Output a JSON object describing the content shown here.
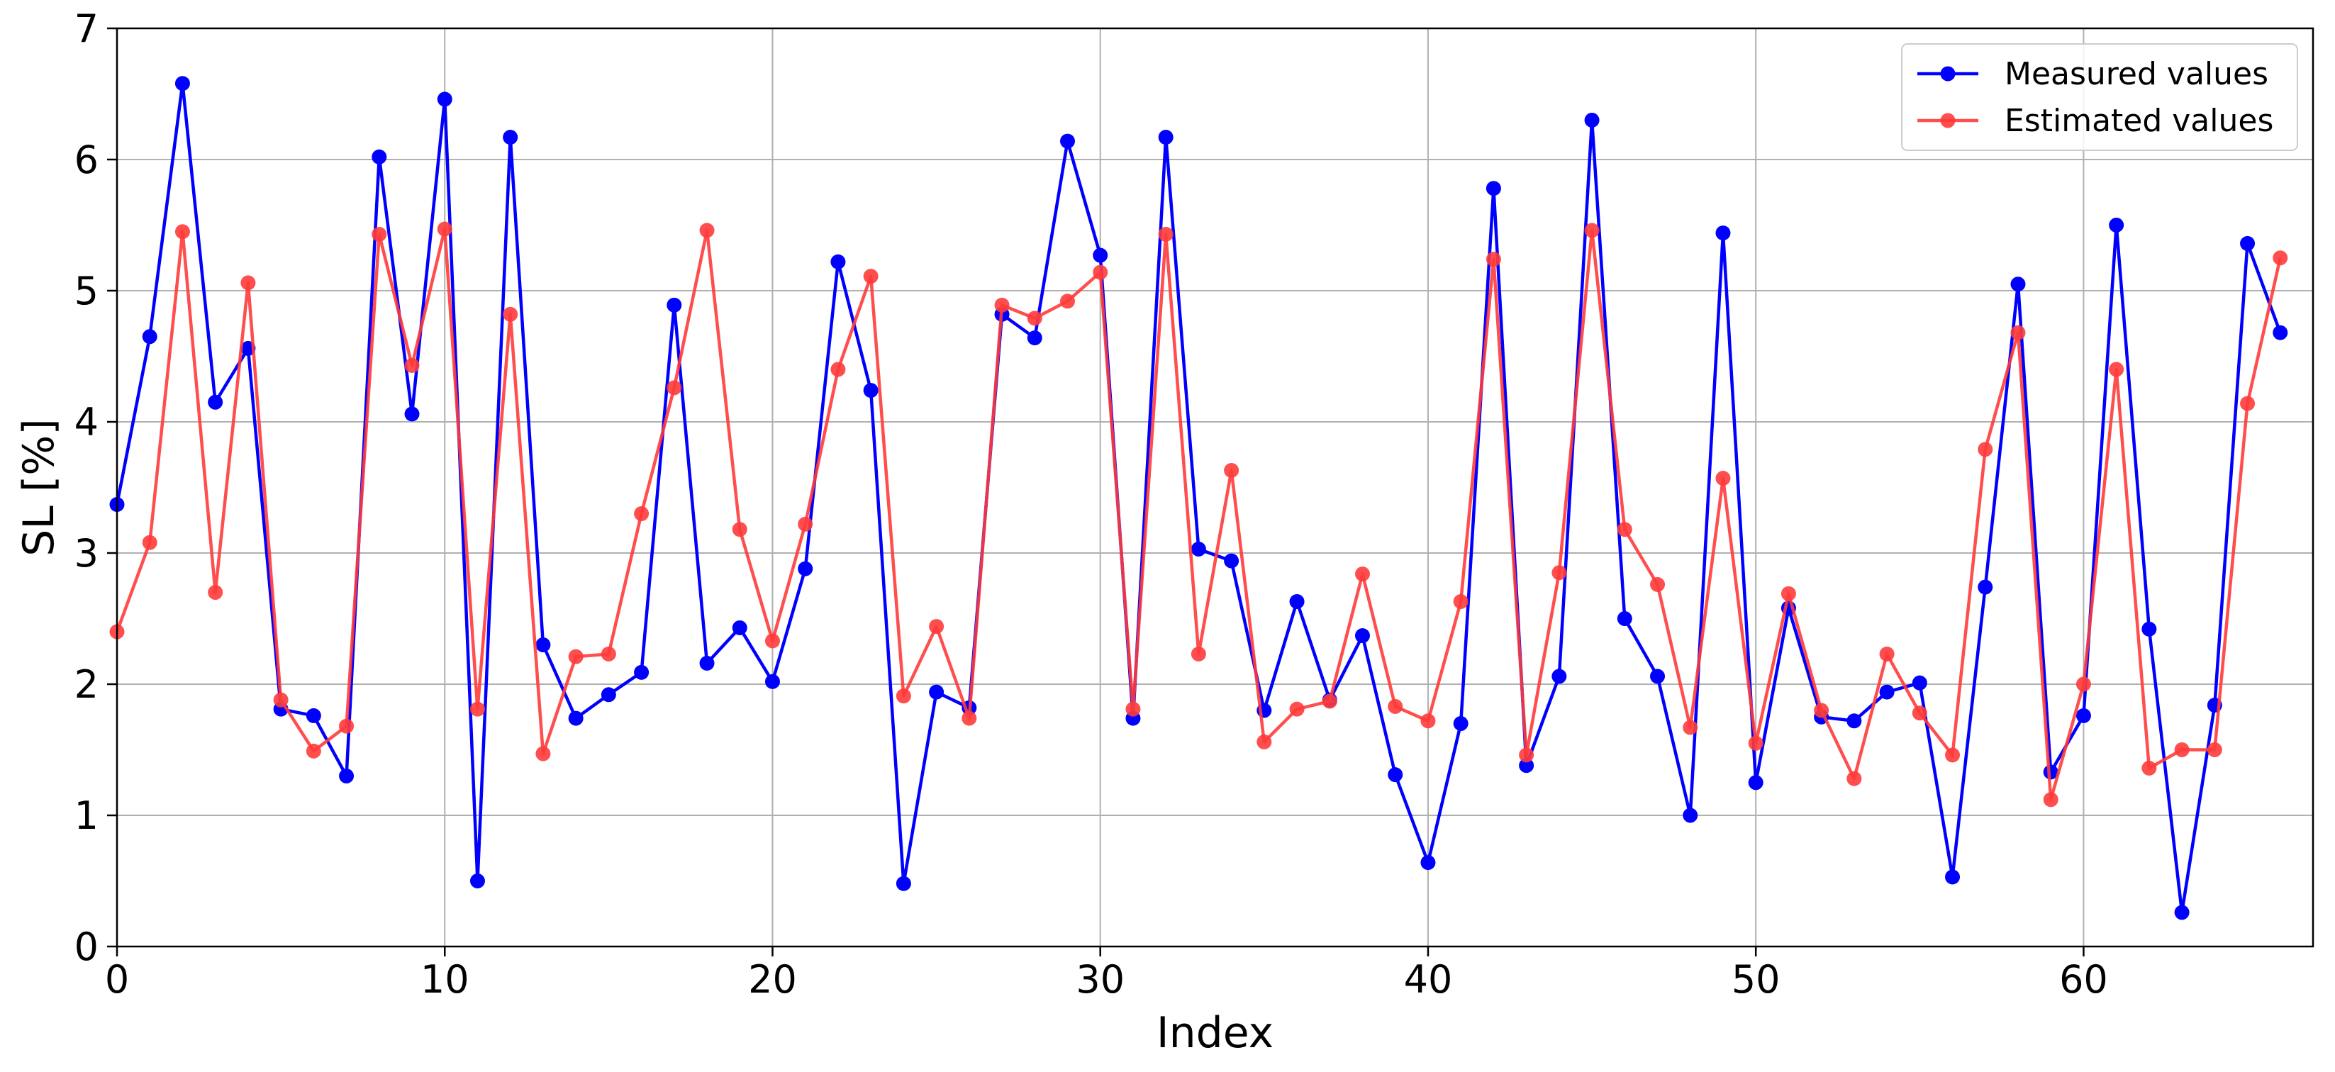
{
  "chart_data": {
    "type": "line",
    "xlabel": "Index",
    "ylabel": "SL [%]",
    "xlim": [
      0,
      67
    ],
    "ylim": [
      0,
      7
    ],
    "x_ticks": [
      0,
      10,
      20,
      30,
      40,
      50,
      60
    ],
    "y_ticks": [
      0,
      1,
      2,
      3,
      4,
      5,
      6,
      7
    ],
    "grid": true,
    "legend_position": "top-right",
    "x": [
      0,
      1,
      2,
      3,
      4,
      5,
      6,
      7,
      8,
      9,
      10,
      11,
      12,
      13,
      14,
      15,
      16,
      17,
      18,
      19,
      20,
      21,
      22,
      23,
      24,
      25,
      26,
      27,
      28,
      29,
      30,
      31,
      32,
      33,
      34,
      35,
      36,
      37,
      38,
      39,
      40,
      41,
      42,
      43,
      44,
      45,
      46,
      47,
      48,
      49,
      50,
      51,
      52,
      53,
      54,
      55,
      56,
      57,
      58,
      59,
      60,
      61,
      62,
      63,
      64,
      65,
      66
    ],
    "series": [
      {
        "name": "Measured values",
        "color": "#0000ff",
        "values": [
          3.37,
          4.65,
          6.58,
          4.15,
          4.56,
          1.81,
          1.76,
          1.3,
          6.02,
          4.06,
          6.46,
          0.5,
          6.17,
          2.3,
          1.74,
          1.92,
          2.09,
          4.89,
          2.16,
          2.43,
          2.02,
          2.88,
          5.22,
          4.24,
          0.48,
          1.94,
          1.82,
          4.82,
          4.64,
          6.14,
          5.27,
          1.74,
          6.17,
          3.03,
          2.94,
          1.8,
          2.63,
          1.88,
          2.37,
          1.31,
          0.64,
          1.7,
          5.78,
          1.38,
          2.06,
          6.3,
          2.5,
          2.06,
          1.0,
          5.44,
          1.25,
          2.58,
          1.75,
          1.72,
          1.94,
          2.01,
          0.53,
          2.74,
          5.05,
          1.33,
          1.76,
          5.5,
          2.42,
          0.26,
          1.84,
          5.36,
          4.68
        ]
      },
      {
        "name": "Estimated values",
        "color": "#ff3b3b",
        "values": [
          2.4,
          3.08,
          5.45,
          2.7,
          5.06,
          1.88,
          1.49,
          1.68,
          5.43,
          4.43,
          5.47,
          1.81,
          4.82,
          1.47,
          2.21,
          2.23,
          3.3,
          4.26,
          5.46,
          3.18,
          2.33,
          3.22,
          4.4,
          5.11,
          1.91,
          2.44,
          1.74,
          4.89,
          4.79,
          4.92,
          5.14,
          1.81,
          5.43,
          2.23,
          3.63,
          1.56,
          1.81,
          1.87,
          2.84,
          1.83,
          1.72,
          2.63,
          5.24,
          1.46,
          2.85,
          5.46,
          3.18,
          2.76,
          1.67,
          3.57,
          1.55,
          2.69,
          1.8,
          1.28,
          2.23,
          1.78,
          1.46,
          3.79,
          4.68,
          1.12,
          2.0,
          4.4,
          1.36,
          1.5,
          1.5,
          4.14,
          5.25
        ]
      }
    ]
  }
}
